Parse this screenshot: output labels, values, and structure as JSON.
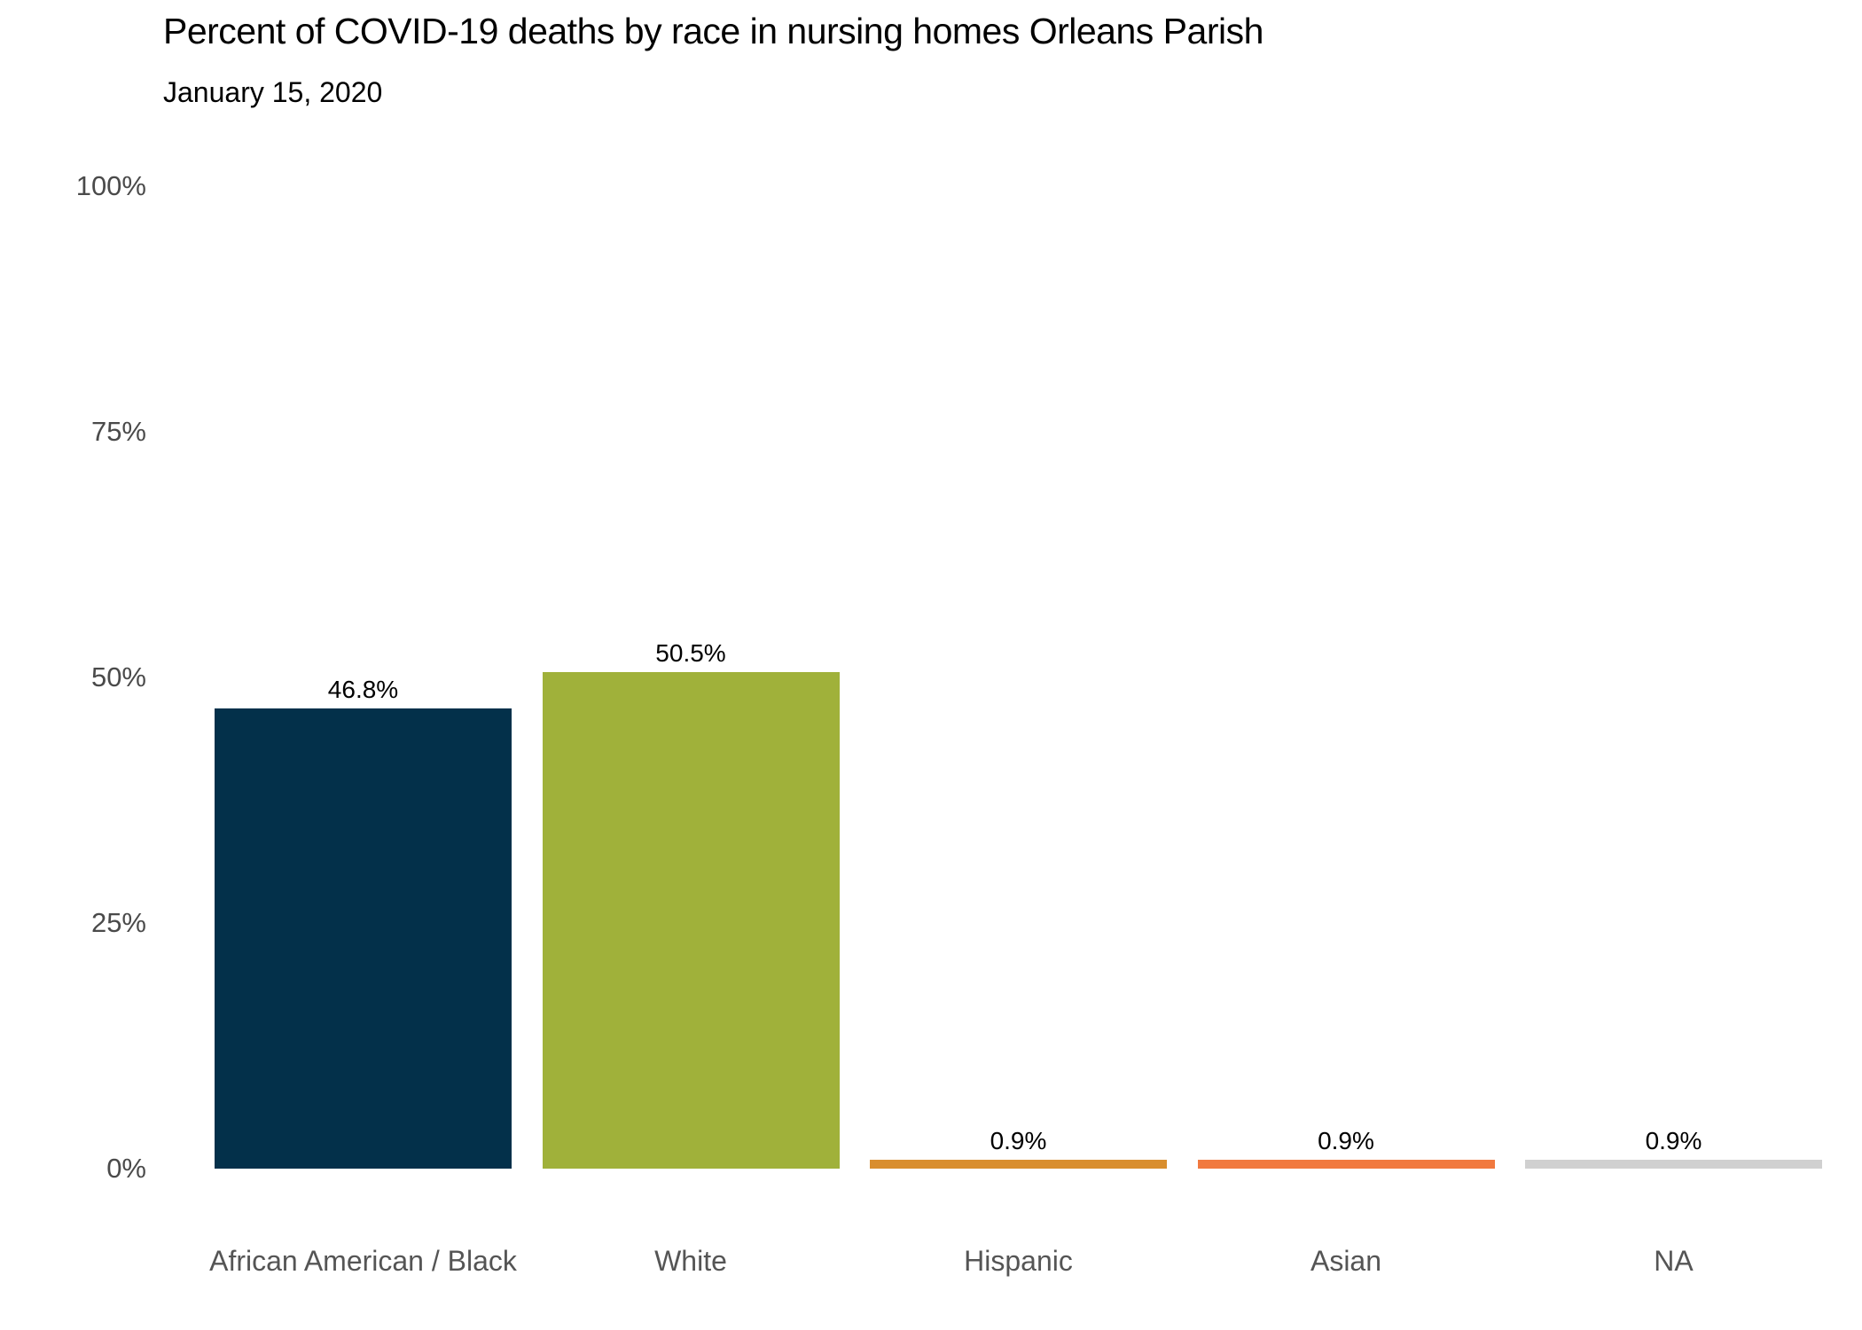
{
  "title": "Percent of COVID-19 deaths by race in nursing homes Orleans Parish",
  "subtitle": "January 15, 2020",
  "chart_data": {
    "type": "bar",
    "title": "Percent of COVID-19 deaths by race in nursing homes Orleans Parish",
    "subtitle": "January 15, 2020",
    "categories": [
      "African American / Black",
      "White",
      "Hispanic",
      "Asian",
      "NA"
    ],
    "values": [
      46.8,
      50.5,
      0.9,
      0.9,
      0.9
    ],
    "value_labels": [
      "46.8%",
      "50.5%",
      "0.9%",
      "0.9%",
      "0.9%"
    ],
    "bar_colors": [
      "#03304a",
      "#a0b13a",
      "#d98e2e",
      "#f1793f",
      "#d0d0d0"
    ],
    "xlabel": "",
    "ylabel": "",
    "ylim": [
      0,
      100
    ],
    "yticks": [
      0,
      25,
      50,
      75,
      100
    ],
    "ytick_labels": [
      "0%",
      "25%",
      "50%",
      "75%",
      "100%"
    ],
    "grid": false,
    "legend": false,
    "background": "#ffffff"
  },
  "colors": {
    "title_text": "#000000",
    "value_label_text": "#000000",
    "tick_label_text": "#4a4a4a",
    "category_label_text": "#555555",
    "background": "#ffffff"
  }
}
